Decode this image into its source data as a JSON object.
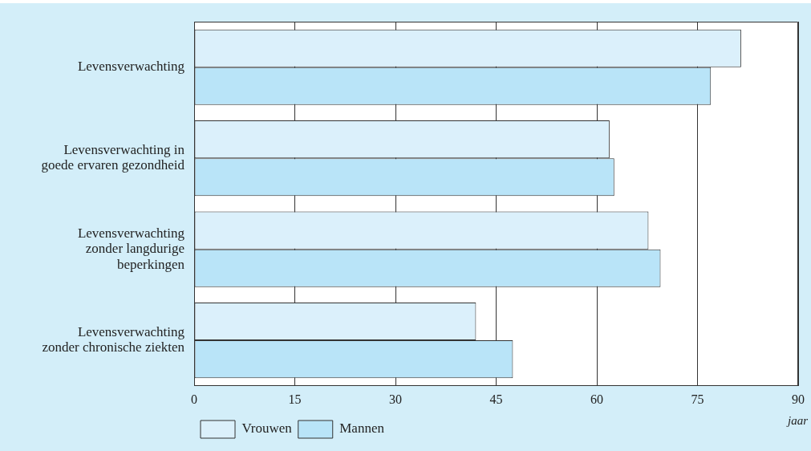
{
  "chart_data": {
    "type": "bar",
    "orientation": "horizontal",
    "categories": [
      "Levensverwachting",
      "Levensverwachting in goede ervaren gezondheid",
      "Levensverwachting zonder langdurige beperkingen",
      "Levensverwachting zonder chronische ziekten"
    ],
    "series": [
      {
        "name": "Vrouwen",
        "color": "#dbf0fb",
        "values": [
          81.5,
          61.9,
          67.7,
          42.0
        ]
      },
      {
        "name": "Mannen",
        "color": "#b9e4f8",
        "values": [
          77.0,
          62.6,
          69.5,
          47.5
        ]
      }
    ],
    "xlabel": "jaar",
    "xlim": [
      0,
      90
    ],
    "xticks": [
      0,
      15,
      30,
      45,
      60,
      75,
      90
    ],
    "grid": "x",
    "legend": "bottom left"
  }
}
